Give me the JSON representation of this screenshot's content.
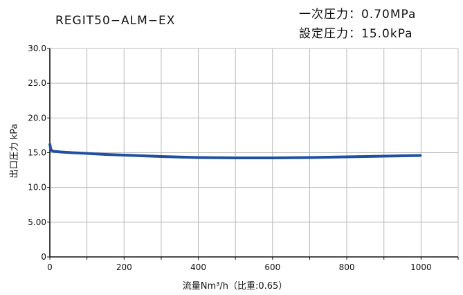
{
  "chart_data": {
    "type": "line",
    "title": "REGIT50−ALM−EX",
    "conditions": [
      "一次圧力：0.70MPa",
      "設定圧力：15.0kPa"
    ],
    "xlabel": "流量Nm³/h（比重:0.65）",
    "ylabel": "出口圧力 kPa",
    "xlim": [
      0,
      1100
    ],
    "ylim": [
      0,
      30
    ],
    "xticks": [
      0,
      200,
      400,
      600,
      800,
      1000
    ],
    "xtick_labels": [
      "0",
      "200",
      "400",
      "600",
      "800",
      "1000"
    ],
    "yticks": [
      0,
      5,
      10,
      15,
      20,
      25,
      30
    ],
    "ytick_labels": [
      "0",
      "5.00",
      "10.0",
      "15.0",
      "20.0",
      "25.0",
      "30.0"
    ],
    "grid": true,
    "series": [
      {
        "color": "#2150a0",
        "x": [
          0,
          2,
          5,
          10,
          30,
          60,
          100,
          150,
          200,
          300,
          400,
          500,
          600,
          700,
          800,
          900,
          1000
        ],
        "y": [
          16.3,
          15.6,
          15.3,
          15.2,
          15.1,
          15.0,
          14.9,
          14.75,
          14.65,
          14.45,
          14.3,
          14.25,
          14.25,
          14.3,
          14.4,
          14.5,
          14.6
        ]
      }
    ]
  }
}
